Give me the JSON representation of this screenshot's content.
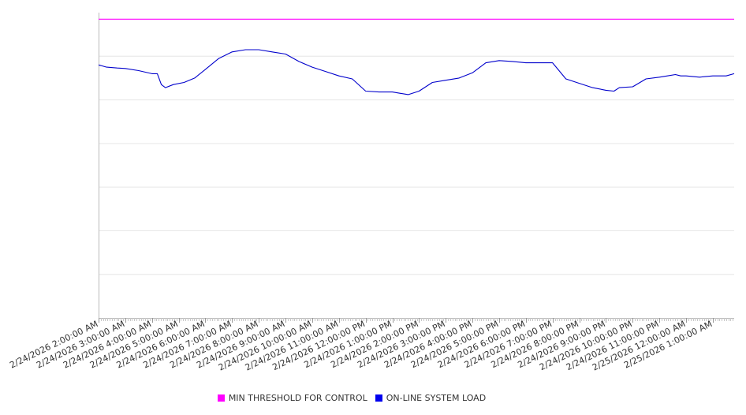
{
  "chart_data": {
    "type": "line",
    "title": "",
    "xlabel": "",
    "ylabel": "",
    "y_tick_labels_visible": false,
    "grid": "horizontal",
    "legend_position": "bottom",
    "x_tick_labels": [
      "2/24/2026 2:00:00 AM",
      "2/24/2026 3:00:00 AM",
      "2/24/2026 4:00:00 AM",
      "2/24/2026 5:00:00 AM",
      "2/24/2026 6:00:00 AM",
      "2/24/2026 7:00:00 AM",
      "2/24/2026 8:00:00 AM",
      "2/24/2026 9:00:00 AM",
      "2/24/2026 10:00:00 AM",
      "2/24/2026 11:00:00 AM",
      "2/24/2026 12:00:00 PM",
      "2/24/2026 1:00:00 PM",
      "2/24/2026 2:00:00 PM",
      "2/24/2026 3:00:00 PM",
      "2/24/2026 4:00:00 PM",
      "2/24/2026 5:00:00 PM",
      "2/24/2026 6:00:00 PM",
      "2/24/2026 7:00:00 PM",
      "2/24/2026 8:00:00 PM",
      "2/24/2026 9:00:00 PM",
      "2/24/2026 10:00:00 PM",
      "2/24/2026 11:00:00 PM",
      "2/25/2026 12:00:00 AM",
      "2/25/2026 1:00:00 AM"
    ],
    "x_range_hours": [
      0,
      23.8
    ],
    "y_range": [
      0,
      7
    ],
    "gridlines_y": [
      1,
      2,
      3,
      4,
      5,
      6
    ],
    "series": [
      {
        "name": "MIN THRESHOLD FOR CONTROL",
        "color": "#ff00ff",
        "x": [
          0,
          23.8
        ],
        "y": [
          6.85,
          6.85
        ]
      },
      {
        "name": "ON-LINE SYSTEM LOAD",
        "color": "#0000cc",
        "x": [
          0,
          0.3,
          0.7,
          1.0,
          1.5,
          2.0,
          2.2,
          2.35,
          2.5,
          2.8,
          3.2,
          3.6,
          4.0,
          4.5,
          5.0,
          5.5,
          6.0,
          6.5,
          7.0,
          7.5,
          8.0,
          8.5,
          9.0,
          9.5,
          10.0,
          10.5,
          11.0,
          11.3,
          11.6,
          12.0,
          12.5,
          13.0,
          13.5,
          14.0,
          14.5,
          15.0,
          15.5,
          16.0,
          16.5,
          17.0,
          17.5,
          18.0,
          18.5,
          19.0,
          19.3,
          19.5,
          20.0,
          20.5,
          21.0,
          21.3,
          21.6,
          21.8,
          22.0,
          22.5,
          23.0,
          23.5,
          23.8
        ],
        "y": [
          5.8,
          5.75,
          5.73,
          5.72,
          5.67,
          5.6,
          5.6,
          5.35,
          5.28,
          5.35,
          5.4,
          5.5,
          5.7,
          5.95,
          6.1,
          6.15,
          6.15,
          6.1,
          6.05,
          5.88,
          5.75,
          5.65,
          5.55,
          5.48,
          5.2,
          5.18,
          5.18,
          5.15,
          5.12,
          5.2,
          5.4,
          5.45,
          5.5,
          5.62,
          5.85,
          5.9,
          5.88,
          5.85,
          5.85,
          5.85,
          5.48,
          5.38,
          5.28,
          5.22,
          5.2,
          5.28,
          5.3,
          5.48,
          5.52,
          5.55,
          5.58,
          5.55,
          5.55,
          5.52,
          5.55,
          5.55,
          5.6
        ]
      }
    ]
  }
}
